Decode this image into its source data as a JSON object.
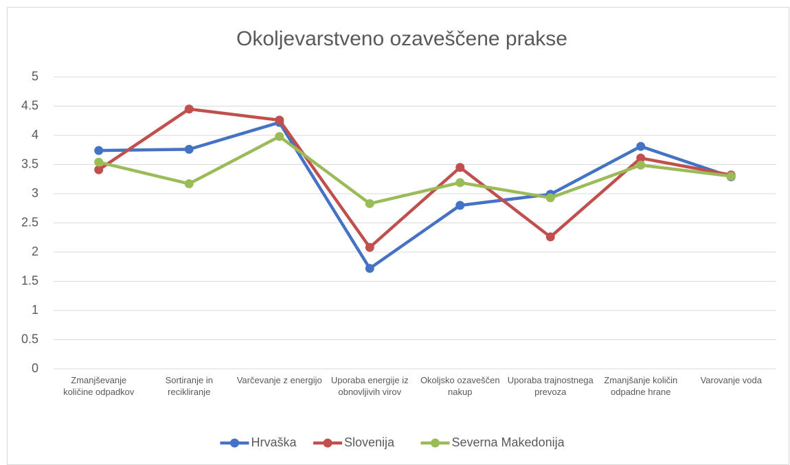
{
  "chart_data": {
    "type": "line",
    "title": "Okoljevarstveno ozaveščene prakse",
    "categories": [
      "Zmanjševanje količine odpadkov",
      "Sortiranje in recikliranje",
      "Varčevanje z energijo",
      "Uporaba energije iz obnovljivih virov",
      "Okoljsko ozaveščen nakup",
      "Uporaba trajnostnega prevoza",
      "Zmanjšanje količin odpadne hrane",
      "Varovanje voda"
    ],
    "series": [
      {
        "name": "Hrvaška",
        "color": "#4472c4",
        "values": [
          3.74,
          3.76,
          4.22,
          1.72,
          2.8,
          2.99,
          3.81,
          3.29
        ]
      },
      {
        "name": "Slovenija",
        "color": "#c0504d",
        "values": [
          3.41,
          4.45,
          4.26,
          2.08,
          3.45,
          2.26,
          3.61,
          3.32
        ]
      },
      {
        "name": "Severna Makedonija",
        "color": "#9bbb59",
        "values": [
          3.54,
          3.17,
          3.98,
          2.83,
          3.19,
          2.93,
          3.49,
          3.3
        ]
      }
    ],
    "ylim": [
      0,
      5
    ],
    "yticks": [
      0,
      0.5,
      1,
      1.5,
      2,
      2.5,
      3,
      3.5,
      4,
      4.5,
      5
    ],
    "grid": true,
    "legend": "bottom"
  }
}
